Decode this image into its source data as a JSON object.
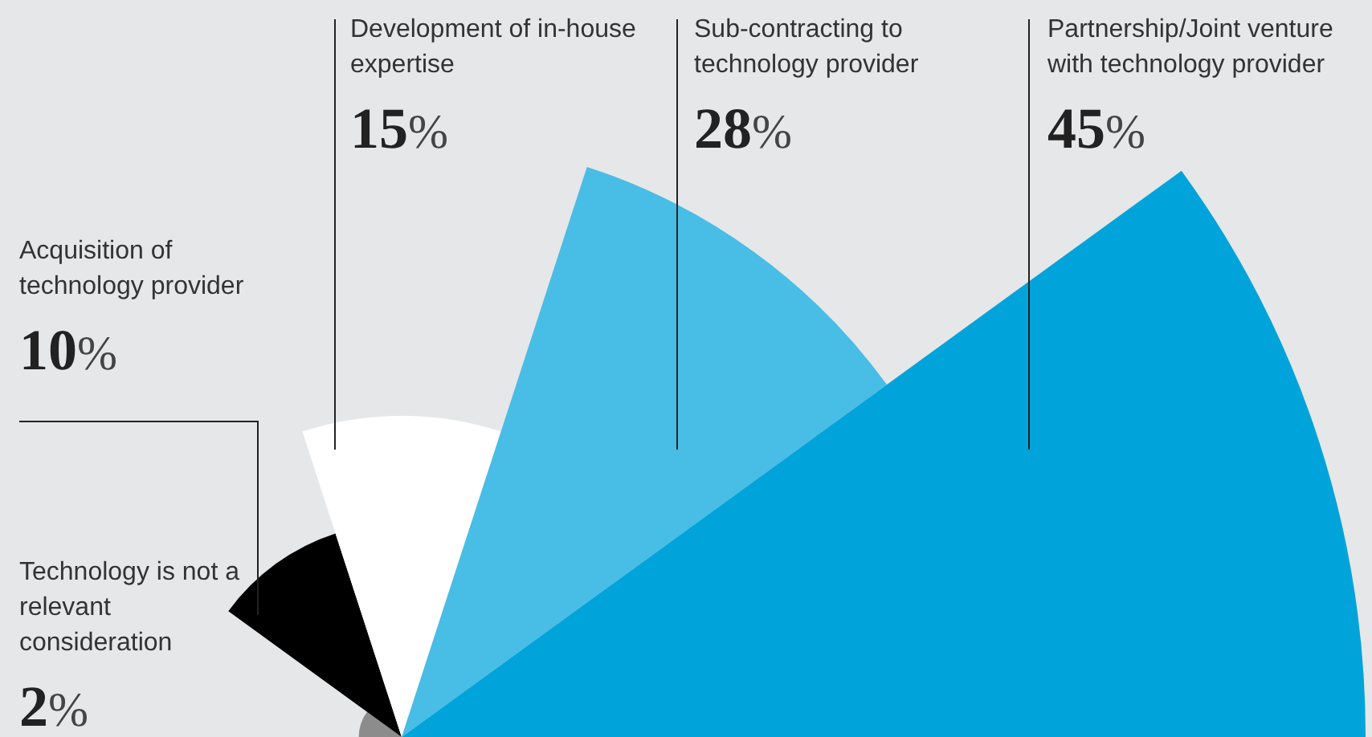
{
  "chart_data": {
    "type": "other",
    "categories": [
      "Technology is not a relevant consideration",
      "Acquisition of technology provider",
      "Development of in-house expertise",
      "Sub-contracting to technology provider",
      "Partnership/Joint venture with technology provider"
    ],
    "values": [
      2,
      10,
      15,
      28,
      45
    ],
    "value_labels": [
      "2%",
      "10%",
      "15%",
      "28%",
      "45%"
    ],
    "colors": [
      "#8c8c8c",
      "#000000",
      "#ffffff",
      "#48bde6",
      "#00a4da"
    ],
    "data_labels": true
  }
}
